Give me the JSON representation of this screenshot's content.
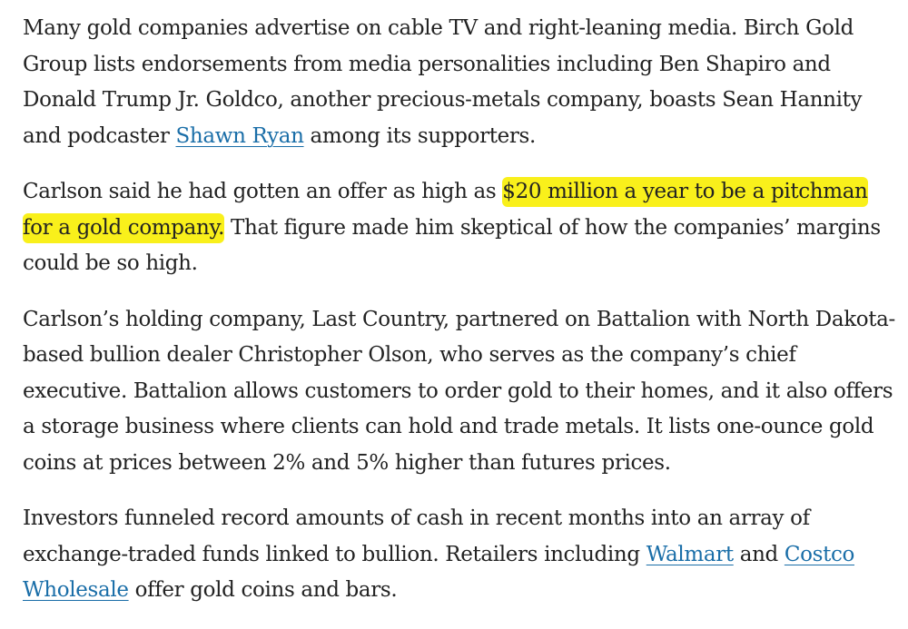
{
  "article": {
    "p1": {
      "t1": "Many gold companies advertise on cable TV and right-leaning media. Birch Gold Group lists endorsements from media personalities including Ben Shapiro and Donald Trump Jr. Goldco, another precious-metals company, boasts Sean Hannity and podcaster ",
      "link1": "Shawn Ryan",
      "t2": " among its supporters."
    },
    "p2": {
      "t1": "Carlson said he had gotten an offer as high as ",
      "highlight": "$20 million a year to be a pitchman for a gold company.",
      "t2": " That figure made him skeptical of how the companies’ margins could be so high."
    },
    "p3": {
      "t1": "Carlson’s holding company, Last Country, partnered on Battalion with North Dakota-based bullion dealer Christopher Olson, who serves as the company’s chief executive. Battalion allows customers to order gold to their homes, and it also offers a storage business where clients can hold and trade metals. It lists one-ounce gold coins at prices between 2% and 5% higher than futures prices."
    },
    "p4": {
      "t1": "Investors funneled record amounts of cash in recent months into an array of exchange-traded funds linked to bullion. Retailers including ",
      "link1": "Walmart",
      "t2": " and ",
      "link2": "Costco Wholesale",
      "t3": " offer gold coins and bars."
    },
    "highlight_color": "#f9f01b",
    "link_color": "#1a6ea8"
  }
}
